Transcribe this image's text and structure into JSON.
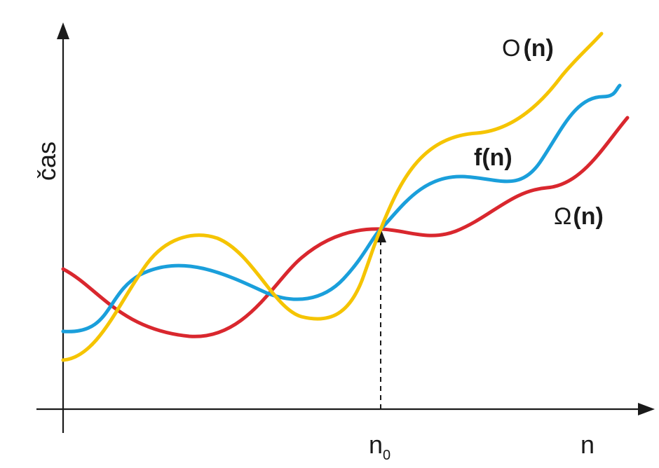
{
  "axes": {
    "y_label": "čas",
    "x_label": "n",
    "x_tick_label": "n",
    "x_tick_subscript": "0"
  },
  "curves": [
    {
      "id": "big_o",
      "label_symbol": "O",
      "label_arg": "(n)",
      "color": "#f5c400"
    },
    {
      "id": "f",
      "label_symbol": "f",
      "label_arg": "(n)",
      "color": "#1a9fdb"
    },
    {
      "id": "omega",
      "label_symbol": "Ω",
      "label_arg": "(n)",
      "color": "#d9272e"
    }
  ],
  "colors": {
    "axis": "#1a1a1a",
    "background": "#ffffff"
  }
}
